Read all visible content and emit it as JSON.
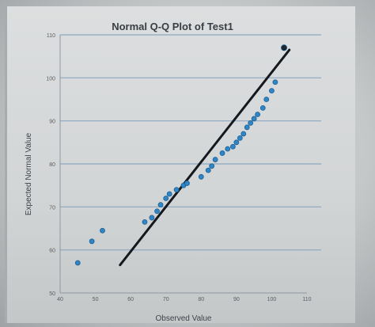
{
  "chart_data": {
    "type": "scatter",
    "title": "Normal Q-Q Plot of Test1",
    "xlabel": "Observed Value",
    "ylabel": "Expected Normal Value",
    "xlim": [
      40,
      110
    ],
    "ylim": [
      50,
      110
    ],
    "x_ticks": [
      40,
      50,
      60,
      70,
      80,
      90,
      100,
      110
    ],
    "y_ticks": [
      50,
      60,
      70,
      80,
      90,
      100,
      110
    ],
    "grid": "horizontal",
    "reference_line": {
      "x": [
        57,
        105
      ],
      "y": [
        56.5,
        106.5
      ]
    },
    "points": [
      {
        "x": 45,
        "y": 57
      },
      {
        "x": 49,
        "y": 62
      },
      {
        "x": 52,
        "y": 64.5
      },
      {
        "x": 64,
        "y": 66.5
      },
      {
        "x": 66,
        "y": 67.5
      },
      {
        "x": 67.5,
        "y": 69
      },
      {
        "x": 68.5,
        "y": 70.5
      },
      {
        "x": 70,
        "y": 72
      },
      {
        "x": 71,
        "y": 73
      },
      {
        "x": 73,
        "y": 74
      },
      {
        "x": 75,
        "y": 75
      },
      {
        "x": 76,
        "y": 75.5
      },
      {
        "x": 80,
        "y": 77
      },
      {
        "x": 82,
        "y": 78.5
      },
      {
        "x": 83,
        "y": 79.5
      },
      {
        "x": 84,
        "y": 81
      },
      {
        "x": 86,
        "y": 82.5
      },
      {
        "x": 87.5,
        "y": 83.5
      },
      {
        "x": 89,
        "y": 84
      },
      {
        "x": 90,
        "y": 85
      },
      {
        "x": 91,
        "y": 86
      },
      {
        "x": 92,
        "y": 87
      },
      {
        "x": 93,
        "y": 88.5
      },
      {
        "x": 94,
        "y": 89.5
      },
      {
        "x": 95,
        "y": 90.5
      },
      {
        "x": 96,
        "y": 91.5
      },
      {
        "x": 97.5,
        "y": 93
      },
      {
        "x": 98.5,
        "y": 95
      },
      {
        "x": 100,
        "y": 97
      },
      {
        "x": 101,
        "y": 99
      },
      {
        "x": 103.5,
        "y": 107
      }
    ],
    "colors": {
      "point": "#2f86c6",
      "point_outline": "#1d5f93",
      "line": "#15181d",
      "grid": "#8da7c0",
      "highlight_point": "#20262e"
    }
  }
}
